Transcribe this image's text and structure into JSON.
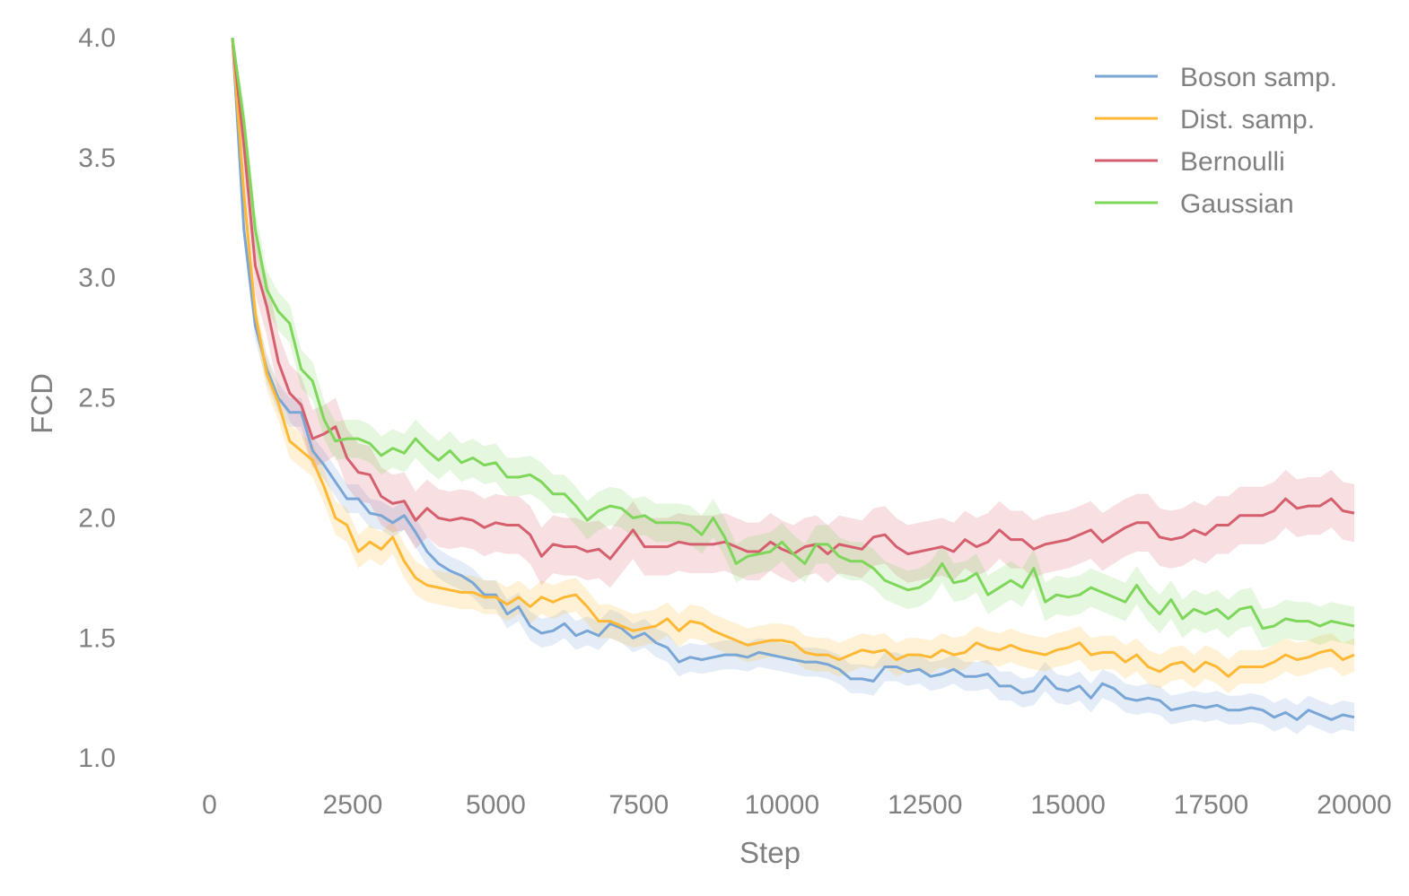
{
  "chart_data": {
    "type": "line",
    "title": "",
    "xlabel": "Step",
    "ylabel": "FCD",
    "xlim": [
      -1200,
      20800
    ],
    "ylim": [
      0.9,
      4.0
    ],
    "xticks": [
      0,
      2500,
      5000,
      7500,
      10000,
      12500,
      15000,
      17500,
      20000
    ],
    "xtick_labels": [
      "0",
      "2500",
      "5000",
      "7500",
      "10000",
      "12500",
      "15000",
      "17500",
      "20000"
    ],
    "yticks": [
      1.0,
      1.5,
      2.0,
      2.5,
      3.0,
      3.5,
      4.0
    ],
    "ytick_labels": [
      "1.0",
      "1.5",
      "2.0",
      "2.5",
      "3.0",
      "3.5",
      "4.0"
    ],
    "grid": false,
    "legend_position": "top-right",
    "series": [
      {
        "name": "Boson samp.",
        "color": "#7aa6d6",
        "band": 0.06,
        "x": [
          400,
          600,
          800,
          1000,
          1200,
          1400,
          1600,
          1800,
          2000,
          2200,
          2400,
          2600,
          2800,
          3000,
          3200,
          3400,
          3600,
          3800,
          4000,
          4200,
          4400,
          4600,
          4800,
          5000,
          5200,
          5400,
          5600,
          5800,
          6000,
          6200,
          6400,
          6600,
          6800,
          7000,
          7200,
          7400,
          7600,
          7800,
          8000,
          8200,
          8400,
          8600,
          8800,
          9000,
          9200,
          9400,
          9600,
          9800,
          10000,
          10200,
          10400,
          10600,
          10800,
          11000,
          11200,
          11400,
          11600,
          11800,
          12000,
          12200,
          12400,
          12600,
          12800,
          13000,
          13200,
          13400,
          13600,
          13800,
          14000,
          14200,
          14400,
          14600,
          14800,
          15000,
          15200,
          15400,
          15600,
          15800,
          16000,
          16200,
          16400,
          16600,
          16800,
          17000,
          17200,
          17400,
          17600,
          17800,
          18000,
          18200,
          18400,
          18600,
          18800,
          19000,
          19200,
          19400,
          19600,
          19800,
          20000
        ],
        "values": [
          4.0,
          3.2,
          2.8,
          2.62,
          2.5,
          2.44,
          2.44,
          2.28,
          2.22,
          2.15,
          2.08,
          2.08,
          2.02,
          2.01,
          1.98,
          2.01,
          1.94,
          1.86,
          1.81,
          1.78,
          1.76,
          1.73,
          1.68,
          1.68,
          1.6,
          1.63,
          1.55,
          1.52,
          1.53,
          1.56,
          1.51,
          1.53,
          1.51,
          1.56,
          1.54,
          1.5,
          1.52,
          1.48,
          1.46,
          1.4,
          1.42,
          1.41,
          1.42,
          1.43,
          1.43,
          1.42,
          1.44,
          1.43,
          1.42,
          1.41,
          1.4,
          1.4,
          1.39,
          1.37,
          1.33,
          1.33,
          1.32,
          1.38,
          1.38,
          1.36,
          1.37,
          1.34,
          1.35,
          1.37,
          1.34,
          1.34,
          1.35,
          1.3,
          1.3,
          1.27,
          1.28,
          1.34,
          1.29,
          1.28,
          1.3,
          1.25,
          1.31,
          1.29,
          1.25,
          1.24,
          1.25,
          1.24,
          1.2,
          1.21,
          1.22,
          1.21,
          1.22,
          1.2,
          1.2,
          1.21,
          1.2,
          1.17,
          1.19,
          1.16,
          1.2,
          1.18,
          1.16,
          1.18,
          1.17
        ]
      },
      {
        "name": "Dist. samp.",
        "color": "#ffb833",
        "band": 0.07,
        "x": [
          400,
          600,
          800,
          1000,
          1200,
          1400,
          1600,
          1800,
          2000,
          2200,
          2400,
          2600,
          2800,
          3000,
          3200,
          3400,
          3600,
          3800,
          4000,
          4200,
          4400,
          4600,
          4800,
          5000,
          5200,
          5400,
          5600,
          5800,
          6000,
          6200,
          6400,
          6600,
          6800,
          7000,
          7200,
          7400,
          7600,
          7800,
          8000,
          8200,
          8400,
          8600,
          8800,
          9000,
          9200,
          9400,
          9600,
          9800,
          10000,
          10200,
          10400,
          10600,
          10800,
          11000,
          11200,
          11400,
          11600,
          11800,
          12000,
          12200,
          12400,
          12600,
          12800,
          13000,
          13200,
          13400,
          13600,
          13800,
          14000,
          14200,
          14400,
          14600,
          14800,
          15000,
          15200,
          15400,
          15600,
          15800,
          16000,
          16200,
          16400,
          16600,
          16800,
          17000,
          17200,
          17400,
          17600,
          17800,
          18000,
          18200,
          18400,
          18600,
          18800,
          19000,
          19200,
          19400,
          19600,
          19800,
          20000
        ],
        "values": [
          4.0,
          3.35,
          2.85,
          2.6,
          2.48,
          2.32,
          2.28,
          2.24,
          2.13,
          2.0,
          1.97,
          1.86,
          1.9,
          1.87,
          1.92,
          1.82,
          1.75,
          1.72,
          1.71,
          1.7,
          1.69,
          1.69,
          1.67,
          1.67,
          1.64,
          1.67,
          1.63,
          1.67,
          1.65,
          1.67,
          1.68,
          1.63,
          1.57,
          1.57,
          1.55,
          1.53,
          1.54,
          1.55,
          1.58,
          1.53,
          1.57,
          1.56,
          1.53,
          1.51,
          1.49,
          1.47,
          1.48,
          1.49,
          1.49,
          1.48,
          1.44,
          1.43,
          1.43,
          1.41,
          1.43,
          1.45,
          1.44,
          1.45,
          1.41,
          1.43,
          1.43,
          1.42,
          1.45,
          1.43,
          1.44,
          1.48,
          1.46,
          1.45,
          1.47,
          1.45,
          1.44,
          1.43,
          1.45,
          1.46,
          1.48,
          1.43,
          1.44,
          1.44,
          1.4,
          1.43,
          1.38,
          1.36,
          1.39,
          1.4,
          1.36,
          1.4,
          1.38,
          1.34,
          1.38,
          1.38,
          1.38,
          1.4,
          1.43,
          1.41,
          1.42,
          1.44,
          1.45,
          1.41,
          1.43
        ]
      },
      {
        "name": "Bernoulli",
        "color": "#d65f6e",
        "band": 0.12,
        "x": [
          400,
          600,
          800,
          1000,
          1200,
          1400,
          1600,
          1800,
          2000,
          2200,
          2400,
          2600,
          2800,
          3000,
          3200,
          3400,
          3600,
          3800,
          4000,
          4200,
          4400,
          4600,
          4800,
          5000,
          5200,
          5400,
          5600,
          5800,
          6000,
          6200,
          6400,
          6600,
          6800,
          7000,
          7200,
          7400,
          7600,
          7800,
          8000,
          8200,
          8400,
          8600,
          8800,
          9000,
          9200,
          9400,
          9600,
          9800,
          10000,
          10200,
          10400,
          10600,
          10800,
          11000,
          11200,
          11400,
          11600,
          11800,
          12000,
          12200,
          12400,
          12600,
          12800,
          13000,
          13200,
          13400,
          13600,
          13800,
          14000,
          14200,
          14400,
          14600,
          14800,
          15000,
          15200,
          15400,
          15600,
          15800,
          16000,
          16200,
          16400,
          16600,
          16800,
          17000,
          17200,
          17400,
          17600,
          17800,
          18000,
          18200,
          18400,
          18600,
          18800,
          19000,
          19200,
          19400,
          19600,
          19800,
          20000
        ],
        "values": [
          4.0,
          3.55,
          3.05,
          2.88,
          2.65,
          2.52,
          2.47,
          2.33,
          2.35,
          2.38,
          2.25,
          2.19,
          2.18,
          2.09,
          2.06,
          2.07,
          1.99,
          2.04,
          2.0,
          1.99,
          2.0,
          1.99,
          1.96,
          1.98,
          1.97,
          1.97,
          1.93,
          1.84,
          1.89,
          1.88,
          1.88,
          1.86,
          1.87,
          1.83,
          1.89,
          1.95,
          1.88,
          1.88,
          1.88,
          1.9,
          1.89,
          1.89,
          1.89,
          1.9,
          1.88,
          1.86,
          1.86,
          1.9,
          1.87,
          1.85,
          1.88,
          1.89,
          1.85,
          1.89,
          1.88,
          1.87,
          1.92,
          1.93,
          1.88,
          1.85,
          1.86,
          1.87,
          1.88,
          1.86,
          1.91,
          1.88,
          1.9,
          1.95,
          1.91,
          1.91,
          1.87,
          1.89,
          1.9,
          1.91,
          1.93,
          1.95,
          1.9,
          1.93,
          1.96,
          1.98,
          1.98,
          1.92,
          1.91,
          1.92,
          1.95,
          1.93,
          1.97,
          1.97,
          2.01,
          2.01,
          2.01,
          2.03,
          2.08,
          2.04,
          2.05,
          2.05,
          2.08,
          2.03,
          2.02
        ]
      },
      {
        "name": "Gaussian",
        "color": "#7ed65a",
        "band": 0.08,
        "x": [
          400,
          600,
          800,
          1000,
          1200,
          1400,
          1600,
          1800,
          2000,
          2200,
          2400,
          2600,
          2800,
          3000,
          3200,
          3400,
          3600,
          3800,
          4000,
          4200,
          4400,
          4600,
          4800,
          5000,
          5200,
          5400,
          5600,
          5800,
          6000,
          6200,
          6400,
          6600,
          6800,
          7000,
          7200,
          7400,
          7600,
          7800,
          8000,
          8200,
          8400,
          8600,
          8800,
          9000,
          9200,
          9400,
          9600,
          9800,
          10000,
          10200,
          10400,
          10600,
          10800,
          11000,
          11200,
          11400,
          11600,
          11800,
          12000,
          12200,
          12400,
          12600,
          12800,
          13000,
          13200,
          13400,
          13600,
          13800,
          14000,
          14200,
          14400,
          14600,
          14800,
          15000,
          15200,
          15400,
          15600,
          15800,
          16000,
          16200,
          16400,
          16600,
          16800,
          17000,
          17200,
          17400,
          17600,
          17800,
          18000,
          18200,
          18400,
          18600,
          18800,
          19000,
          19200,
          19400,
          19600,
          19800,
          20000
        ],
        "values": [
          4.0,
          3.65,
          3.2,
          2.95,
          2.86,
          2.81,
          2.62,
          2.57,
          2.41,
          2.32,
          2.33,
          2.33,
          2.31,
          2.26,
          2.29,
          2.27,
          2.33,
          2.28,
          2.24,
          2.28,
          2.23,
          2.25,
          2.22,
          2.23,
          2.17,
          2.17,
          2.18,
          2.15,
          2.1,
          2.1,
          2.05,
          1.99,
          2.03,
          2.05,
          2.04,
          2.0,
          2.01,
          1.98,
          1.98,
          1.98,
          1.97,
          1.93,
          2.0,
          1.92,
          1.81,
          1.84,
          1.85,
          1.86,
          1.9,
          1.85,
          1.81,
          1.89,
          1.89,
          1.84,
          1.82,
          1.82,
          1.79,
          1.74,
          1.72,
          1.7,
          1.71,
          1.74,
          1.81,
          1.73,
          1.74,
          1.77,
          1.68,
          1.71,
          1.74,
          1.71,
          1.79,
          1.65,
          1.68,
          1.67,
          1.68,
          1.71,
          1.69,
          1.67,
          1.65,
          1.72,
          1.65,
          1.6,
          1.66,
          1.58,
          1.62,
          1.6,
          1.62,
          1.58,
          1.62,
          1.63,
          1.54,
          1.55,
          1.58,
          1.57,
          1.57,
          1.55,
          1.57,
          1.56,
          1.55
        ]
      }
    ]
  }
}
